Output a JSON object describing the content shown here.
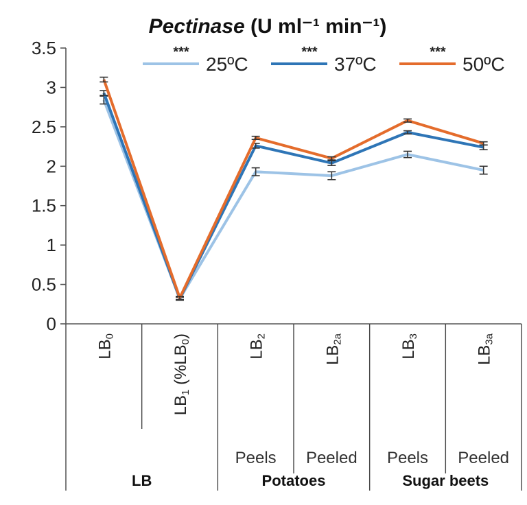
{
  "chart_data": {
    "type": "line",
    "title": "Pectinase (U ml⁻¹ min⁻¹)",
    "title_italic_part": "Pectinase",
    "title_rest": " (U ml⁻¹ min⁻¹)",
    "ylim": [
      0,
      3.5
    ],
    "yticks": [
      "0",
      "0.5",
      "1",
      "1.5",
      "2",
      "2.5",
      "3",
      "3.5"
    ],
    "ytick_values": [
      0,
      0.5,
      1,
      1.5,
      2,
      2.5,
      3,
      3.5
    ],
    "grid": false,
    "legend_position": "top",
    "categories": [
      "LB0",
      "LB1 (%LB0)",
      "LB2",
      "LB2a",
      "LB3",
      "LB3a"
    ],
    "category_labels": [
      {
        "base": "LB",
        "sub": "0",
        "suffix": ""
      },
      {
        "base": "LB",
        "sub": "1",
        "suffix": " (%LB",
        "suffix_sub": "0",
        "suffix_end": ")"
      },
      {
        "base": "LB",
        "sub": "2",
        "suffix": ""
      },
      {
        "base": "LB",
        "sub": "2a",
        "suffix": ""
      },
      {
        "base": "LB",
        "sub": "3",
        "suffix": ""
      },
      {
        "base": "LB",
        "sub": "3a",
        "suffix": ""
      }
    ],
    "sub_labels": [
      "",
      "",
      "Peels",
      "Peeled",
      "Peels",
      "Peeled"
    ],
    "groups": [
      {
        "label": "LB",
        "span": [
          0,
          1
        ]
      },
      {
        "label": "Potatoes",
        "span": [
          2,
          3
        ]
      },
      {
        "label": "Sugar beets",
        "span": [
          4,
          5
        ]
      }
    ],
    "series": [
      {
        "name": "25ºC",
        "stars": "***",
        "color": "#9dc3e6",
        "values": [
          2.84,
          0.32,
          1.93,
          1.88,
          2.15,
          1.95
        ],
        "errors": [
          0.05,
          0.02,
          0.05,
          0.05,
          0.04,
          0.05
        ]
      },
      {
        "name": "37ºC",
        "stars": "***",
        "color": "#2e75b6",
        "values": [
          2.93,
          0.32,
          2.26,
          2.04,
          2.43,
          2.24
        ],
        "errors": [
          0.03,
          0.02,
          0.03,
          0.03,
          0.02,
          0.03
        ]
      },
      {
        "name": "50ºC",
        "stars": "***",
        "color": "#e46c2c",
        "values": [
          3.1,
          0.33,
          2.36,
          2.1,
          2.58,
          2.29
        ],
        "errors": [
          0.03,
          0.02,
          0.02,
          0.02,
          0.02,
          0.02
        ]
      }
    ]
  }
}
